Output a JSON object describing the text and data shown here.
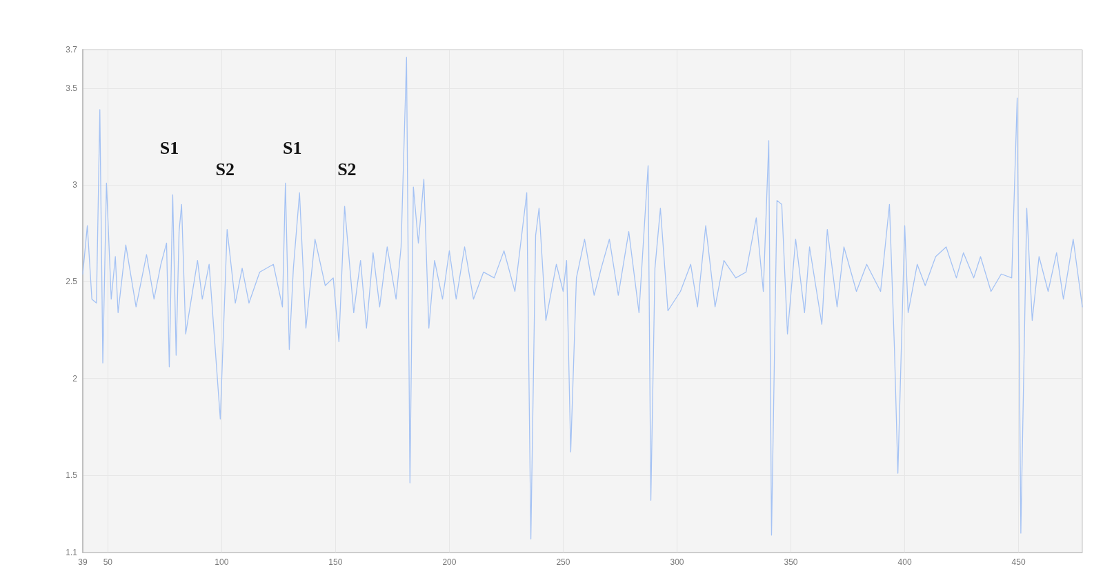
{
  "chart_data": {
    "type": "line",
    "x": [
      39,
      41,
      43,
      45,
      46.5,
      47.8,
      49.4,
      51.5,
      53.3,
      54.5,
      57.9,
      62.4,
      67,
      70.3,
      73.3,
      75.8,
      77,
      78.5,
      80,
      81.3,
      82.4,
      84.2,
      89.4,
      91.5,
      94.5,
      99.4,
      102.4,
      106,
      109,
      112,
      116.7,
      122.7,
      126.7,
      128,
      129.7,
      131.5,
      134.2,
      137,
      141,
      145.5,
      149,
      151.5,
      154,
      158,
      161,
      163.6,
      166.5,
      169.4,
      172.7,
      176.6,
      178.8,
      181.2,
      182.7,
      184.2,
      186.4,
      188.8,
      191,
      193.5,
      197,
      200,
      203,
      206.7,
      210.6,
      215,
      219.7,
      224,
      228.8,
      234,
      235.8,
      237.9,
      239.4,
      242.4,
      247,
      250,
      251.5,
      253.3,
      255.8,
      259.4,
      263.6,
      266.7,
      270.3,
      274.2,
      278.8,
      283.3,
      287.3,
      288.5,
      290.3,
      292.7,
      296,
      301.5,
      306,
      309,
      312.6,
      316.7,
      320.6,
      325.8,
      330.3,
      334.8,
      337.9,
      340.3,
      341.5,
      343.9,
      346,
      348.5,
      352.1,
      356,
      358.2,
      363.6,
      366,
      370.3,
      373.3,
      378.8,
      383.3,
      389.4,
      393.3,
      395.5,
      397,
      400,
      401.5,
      405.5,
      409,
      413.6,
      418.2,
      422.7,
      425.8,
      430.3,
      433.3,
      437.9,
      442.4,
      447,
      449.4,
      451,
      453.6,
      456,
      459,
      463,
      466.7,
      469.7,
      474,
      478
    ],
    "series": [
      {
        "color": "#a4c2f4",
        "values": [
          2.54,
          2.79,
          2.41,
          2.39,
          3.39,
          2.08,
          3.01,
          2.41,
          2.63,
          2.34,
          2.69,
          2.37,
          2.64,
          2.41,
          2.59,
          2.7,
          2.06,
          2.95,
          2.12,
          2.76,
          2.9,
          2.23,
          2.61,
          2.41,
          2.59,
          1.79,
          2.77,
          2.39,
          2.57,
          2.39,
          2.55,
          2.59,
          2.37,
          3.01,
          2.15,
          2.57,
          2.96,
          2.26,
          2.72,
          2.48,
          2.52,
          2.19,
          2.89,
          2.34,
          2.61,
          2.26,
          2.65,
          2.37,
          2.68,
          2.41,
          2.68,
          3.66,
          1.46,
          2.99,
          2.7,
          3.03,
          2.26,
          2.61,
          2.41,
          2.66,
          2.41,
          2.68,
          2.41,
          2.55,
          2.52,
          2.66,
          2.45,
          2.96,
          1.17,
          2.74,
          2.88,
          2.3,
          2.59,
          2.45,
          2.61,
          1.62,
          2.52,
          2.72,
          2.43,
          2.57,
          2.72,
          2.43,
          2.76,
          2.34,
          3.1,
          1.37,
          2.57,
          2.88,
          2.35,
          2.45,
          2.59,
          2.37,
          2.79,
          2.37,
          2.61,
          2.52,
          2.55,
          2.83,
          2.45,
          3.23,
          1.19,
          2.92,
          2.9,
          2.23,
          2.72,
          2.34,
          2.68,
          2.28,
          2.77,
          2.37,
          2.68,
          2.45,
          2.59,
          2.45,
          2.9,
          2.15,
          1.51,
          2.79,
          2.34,
          2.59,
          2.48,
          2.63,
          2.68,
          2.52,
          2.65,
          2.52,
          2.63,
          2.45,
          2.54,
          2.52,
          3.45,
          1.2,
          2.88,
          2.3,
          2.63,
          2.45,
          2.65,
          2.41,
          2.72,
          2.37
        ]
      }
    ],
    "xlim": [
      39,
      478
    ],
    "xticks": [
      39,
      50,
      100,
      150,
      200,
      250,
      300,
      350,
      400,
      450
    ],
    "ylim": [
      1.1,
      3.7
    ],
    "yticks": [
      1.1,
      1.5,
      2,
      2.5,
      3,
      3.5,
      3.7
    ],
    "grid": true,
    "marker": "none",
    "line_style": "solid",
    "annotations": [
      {
        "text": "S1",
        "x": 77,
        "y": 3.19
      },
      {
        "text": "S2",
        "x": 101.5,
        "y": 3.08
      },
      {
        "text": "S1",
        "x": 131,
        "y": 3.19
      },
      {
        "text": "S2",
        "x": 155,
        "y": 3.08
      }
    ]
  }
}
